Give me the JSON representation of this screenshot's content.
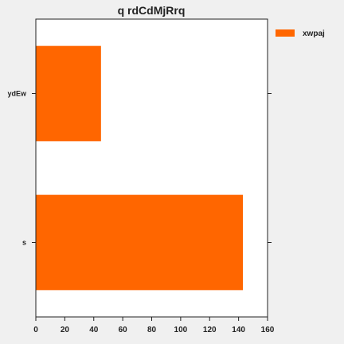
{
  "chart_data": {
    "type": "bar",
    "orientation": "horizontal",
    "title": "q rdCdMjRrq",
    "xlabel": "",
    "ylabel": "",
    "categories": [
      "ydEw",
      "s"
    ],
    "series": [
      {
        "name": "xwpaj",
        "values": [
          45,
          143
        ],
        "color": "#ff6600"
      }
    ],
    "xlim": [
      0,
      160
    ],
    "xticks": [
      0,
      20,
      40,
      60,
      80,
      100,
      120,
      140,
      160
    ],
    "grid": false,
    "legend_position": "top-right outside"
  },
  "colors": {
    "background": "#f0f0f0",
    "plot_background": "#ffffff",
    "axis": "#222222"
  }
}
